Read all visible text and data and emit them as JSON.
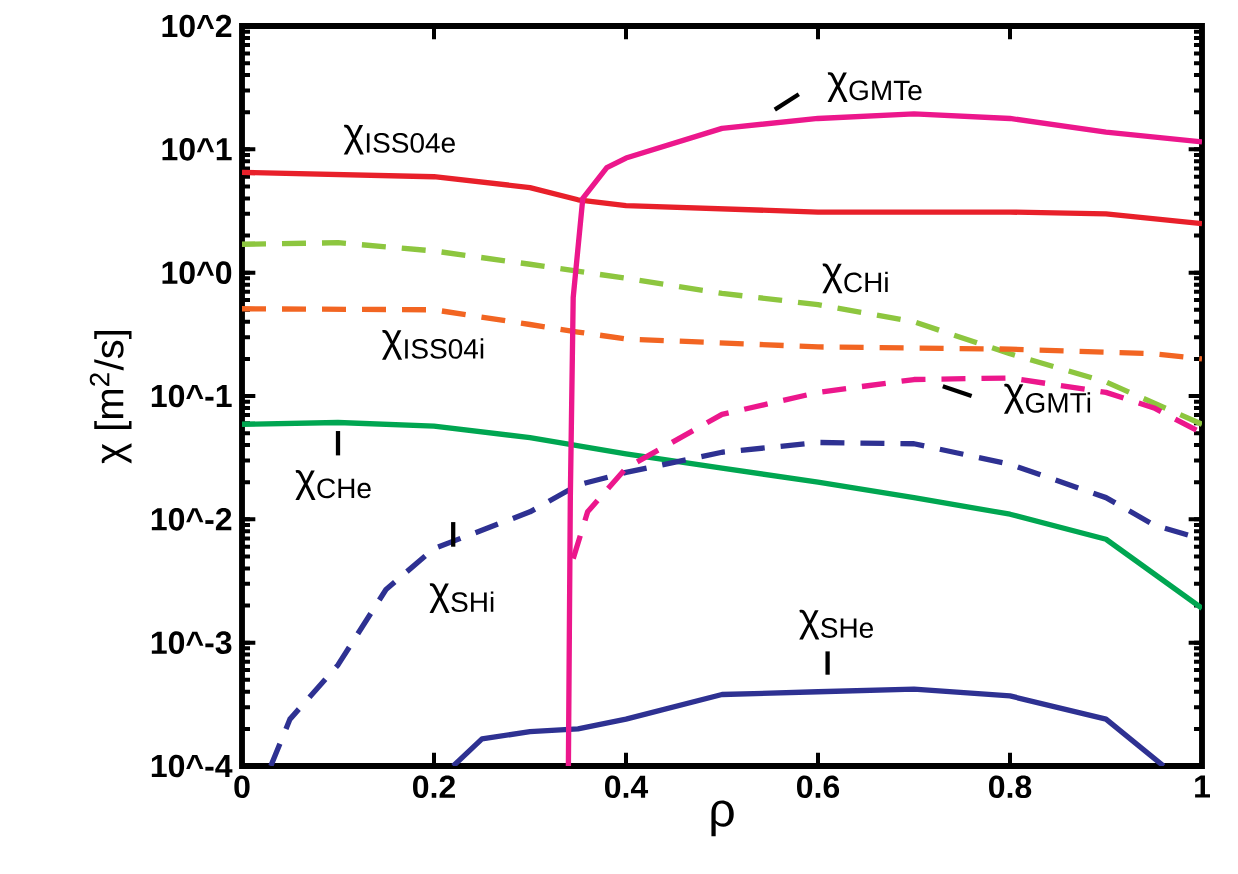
{
  "chart_data": {
    "type": "line",
    "xlabel": "ρ",
    "ylabel": "χ [m$^{2}$/s]",
    "log": "y",
    "xlim": [
      0,
      1
    ],
    "ylim": [
      0.0001,
      100
    ],
    "xticks": [
      0,
      0.2,
      0.4,
      0.6,
      0.8,
      1
    ],
    "yticks": [
      {
        "value": 0.0001,
        "label": "10^-4"
      },
      {
        "value": 0.001,
        "label": "10^-3"
      },
      {
        "value": 0.01,
        "label": "10^-2"
      },
      {
        "value": 0.1,
        "label": "10^-1"
      },
      {
        "value": 1,
        "label": "10^0"
      },
      {
        "value": 10,
        "label": "10^1"
      },
      {
        "value": 100,
        "label": "10^2"
      }
    ],
    "series": [
      {
        "name": "χ$_{ISS04e}$",
        "color": "#e8202a",
        "line_style": "solid",
        "x": [
          0,
          0.2,
          0.3,
          0.35,
          0.4,
          0.6,
          0.8,
          0.9,
          1
        ],
        "values": [
          6.5,
          6.0,
          4.9,
          3.9,
          3.5,
          3.1,
          3.1,
          3.0,
          2.5
        ]
      },
      {
        "name": "χ$_{CHi}$",
        "color": "#8dc63f",
        "line_style": "dashed",
        "x": [
          0,
          0.1,
          0.2,
          0.3,
          0.4,
          0.5,
          0.6,
          0.7,
          0.8,
          0.9,
          1
        ],
        "values": [
          1.7,
          1.75,
          1.5,
          1.17,
          0.9,
          0.68,
          0.55,
          0.4,
          0.22,
          0.13,
          0.059
        ]
      },
      {
        "name": "χ$_{ISS04i}$",
        "color": "#f26522",
        "line_style": "dashed",
        "x": [
          0,
          0.2,
          0.3,
          0.35,
          0.4,
          0.6,
          0.8,
          0.95,
          1
        ],
        "values": [
          0.51,
          0.5,
          0.38,
          0.33,
          0.29,
          0.25,
          0.24,
          0.22,
          0.2
        ]
      },
      {
        "name": "χ$_{CHe}$",
        "color": "#00a651",
        "line_style": "solid",
        "x": [
          0,
          0.1,
          0.2,
          0.3,
          0.4,
          0.5,
          0.6,
          0.7,
          0.8,
          0.9,
          1
        ],
        "values": [
          0.059,
          0.061,
          0.057,
          0.046,
          0.034,
          0.026,
          0.02,
          0.015,
          0.011,
          0.0069,
          0.0019
        ]
      },
      {
        "name": "χ$_{SHi}$",
        "color": "#2e3192",
        "line_style": "dashed",
        "x": [
          0.03,
          0.05,
          0.1,
          0.15,
          0.2,
          0.3,
          0.35,
          0.4,
          0.5,
          0.6,
          0.7,
          0.8,
          0.9,
          0.95,
          1
        ],
        "values": [
          0.0001,
          0.00024,
          0.00066,
          0.0027,
          0.0058,
          0.0115,
          0.019,
          0.024,
          0.035,
          0.042,
          0.041,
          0.028,
          0.015,
          0.009,
          0.0069
        ]
      },
      {
        "name": "χ$_{SHe}$",
        "color": "#2e3192",
        "line_style": "solid",
        "x": [
          0.22,
          0.25,
          0.3,
          0.35,
          0.4,
          0.5,
          0.6,
          0.7,
          0.8,
          0.9,
          0.96
        ],
        "values": [
          0.0001,
          0.000166,
          0.00019,
          0.0002,
          0.00024,
          0.00038,
          0.0004,
          0.00042,
          0.00037,
          0.00024,
          0.0001
        ]
      },
      {
        "name": "χ$_{GMTe}$",
        "color": "#ec178c",
        "line_style": "solid",
        "x": [
          0.34,
          0.342,
          0.345,
          0.355,
          0.38,
          0.4,
          0.5,
          0.6,
          0.7,
          0.8,
          0.9,
          1
        ],
        "values": [
          0.0001,
          0.015,
          0.63,
          4.0,
          7.1,
          8.5,
          14.8,
          17.8,
          19.4,
          17.8,
          13.8,
          11.5
        ]
      },
      {
        "name": "χ$_{GMTi}$",
        "color": "#ec178c",
        "line_style": "dashed",
        "x": [
          0.345,
          0.36,
          0.4,
          0.5,
          0.6,
          0.7,
          0.8,
          0.9,
          0.95,
          1
        ],
        "values": [
          0.0048,
          0.0115,
          0.026,
          0.071,
          0.107,
          0.136,
          0.14,
          0.107,
          0.08,
          0.05
        ]
      }
    ]
  }
}
